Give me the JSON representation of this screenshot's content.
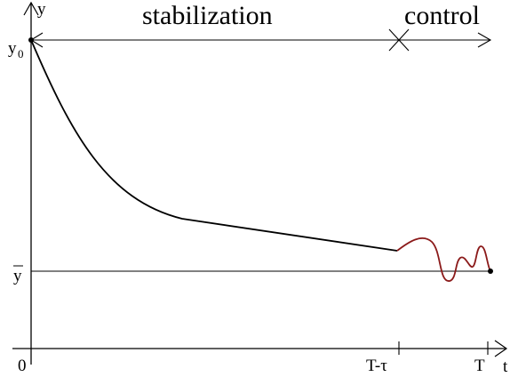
{
  "labels": {
    "y_axis": "y",
    "t_axis": "t",
    "y0_main": "y",
    "y0_sub": "0",
    "ybar": "y",
    "origin": "0",
    "t_minus_tau": "T-τ",
    "t_end": "T",
    "phase_stabilization": "stabilization",
    "phase_control": "control"
  },
  "colors": {
    "axis": "#000000",
    "trajectory": "#000000",
    "control_curve": "#8b1a1a"
  }
}
